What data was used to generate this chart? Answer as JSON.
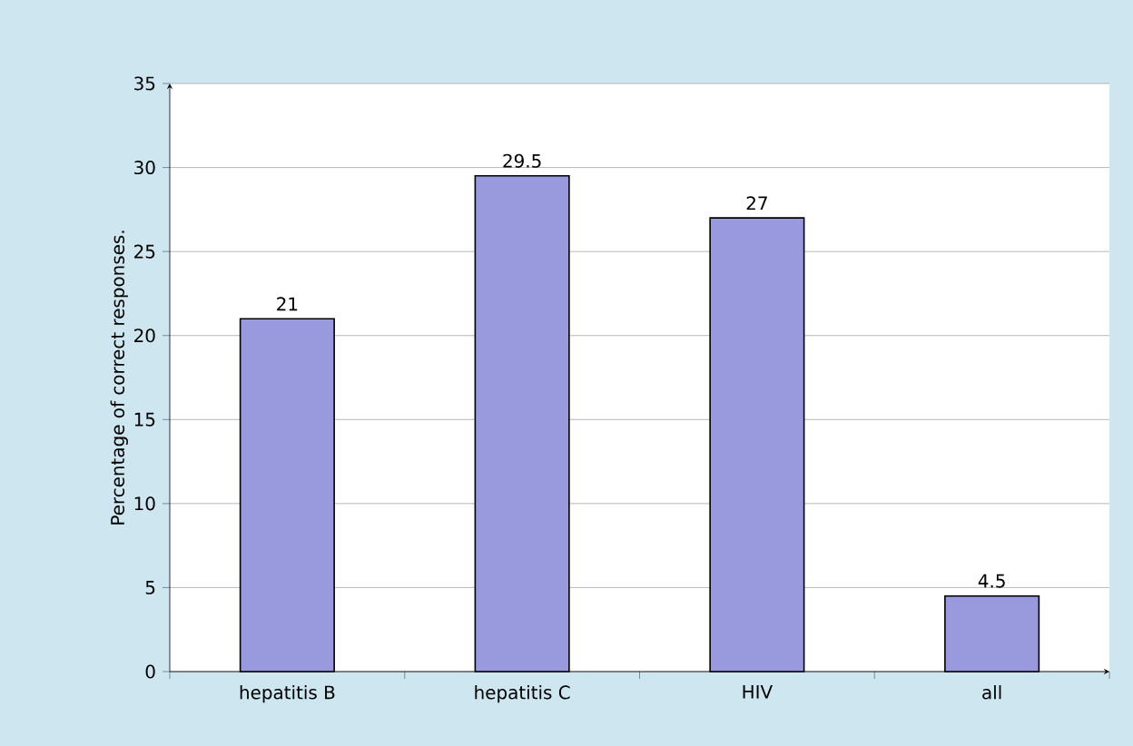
{
  "chart_data": {
    "type": "bar",
    "ylabel": "Percentage of correct responses.",
    "categories": [
      "hepatitis B",
      "hepatitis C",
      "HIV",
      "all"
    ],
    "values": [
      21,
      29.5,
      27,
      4.5
    ],
    "color": "#9999dd",
    "ylim": [
      0,
      35
    ],
    "yticks": [
      0,
      5,
      10,
      15,
      20,
      25,
      30,
      35
    ],
    "grid": "y",
    "data_labels": true
  }
}
